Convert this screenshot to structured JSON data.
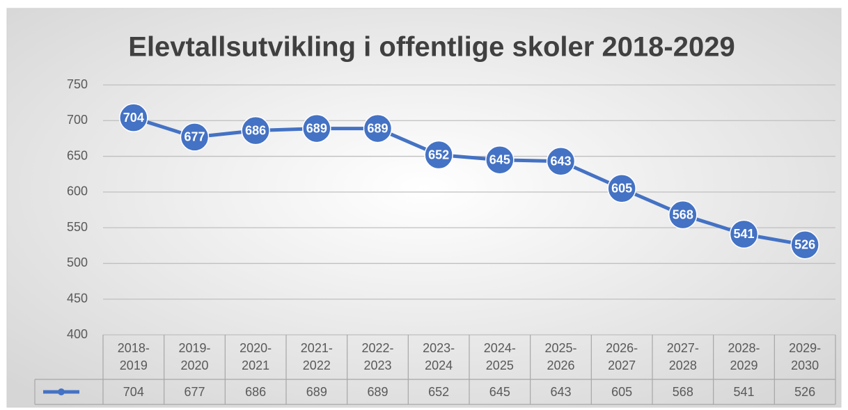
{
  "chart_data": {
    "type": "line",
    "title": "Elevtallsutvikling i offentlige skoler 2018-2029",
    "categories": [
      "2018-2019",
      "2019-2020",
      "2020-2021",
      "2021-2022",
      "2022-2023",
      "2023-2024",
      "2024-2025",
      "2025-2026",
      "2026-2027",
      "2027-2028",
      "2028-2029",
      "2029-2030"
    ],
    "series": [
      {
        "color": "#4472c4",
        "values": [
          704,
          677,
          686,
          689,
          689,
          652,
          645,
          643,
          605,
          568,
          541,
          526
        ]
      }
    ],
    "ylim": [
      400,
      750
    ],
    "yticks": [
      400,
      450,
      500,
      550,
      600,
      650,
      700,
      750
    ],
    "grid": true,
    "data_table": true
  }
}
